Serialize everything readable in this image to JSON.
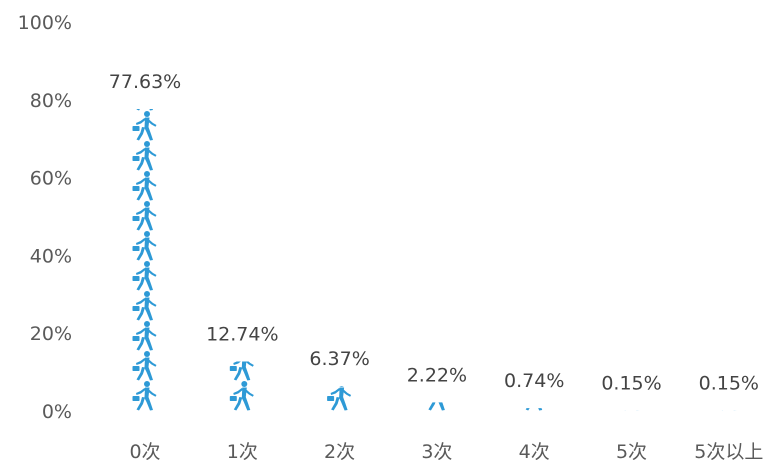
{
  "chart_data": {
    "type": "bar",
    "categories": [
      "0次",
      "1次",
      "2次",
      "3次",
      "4次",
      "5次",
      "5次以上"
    ],
    "values": [
      77.63,
      12.74,
      6.37,
      2.22,
      0.74,
      0.15,
      0.15
    ],
    "data_labels": [
      "77.63%",
      "12.74%",
      "6.37%",
      "2.22%",
      "0.74%",
      "0.15%",
      "0.15%"
    ],
    "ylim": [
      0,
      100
    ],
    "y_ticks": [
      0,
      20,
      40,
      60,
      80,
      100
    ],
    "y_tick_labels": [
      "0%",
      "20%",
      "40%",
      "60%",
      "80%",
      "100%"
    ],
    "title": "",
    "xlabel": "",
    "ylabel": "",
    "grid": false,
    "legend": "none",
    "bar_style": "pictograph",
    "icon": "walking-person-icon",
    "bar_color": "#2e9ad6"
  }
}
